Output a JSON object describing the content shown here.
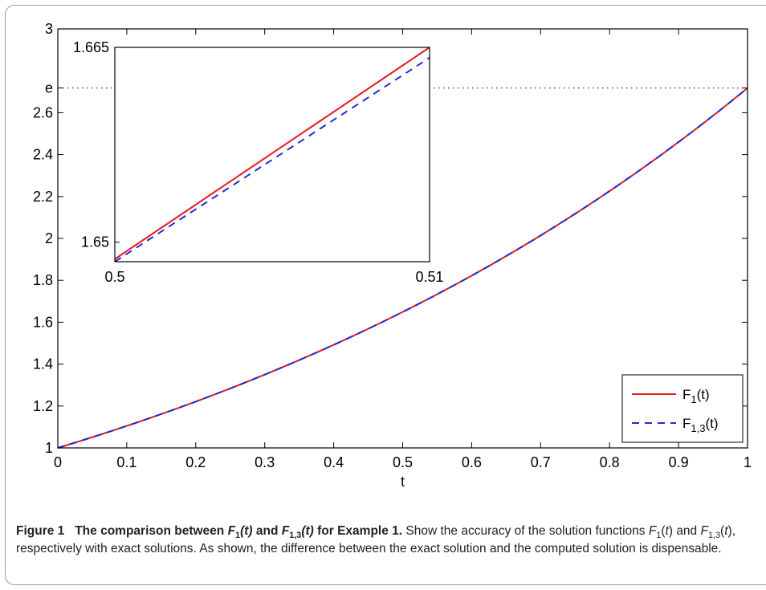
{
  "chart_data": [
    {
      "type": "line",
      "name": "main",
      "title": "",
      "xlabel": "t",
      "ylabel": "",
      "xlim": [
        0,
        1
      ],
      "ylim": [
        1,
        3
      ],
      "xticks": [
        0,
        0.1,
        0.2,
        0.3,
        0.4,
        0.5,
        0.6,
        0.7,
        0.8,
        0.9,
        1
      ],
      "xtick_labels": [
        "0",
        "0.1",
        "0.2",
        "0.3",
        "0.4",
        "0.5",
        "0.6",
        "0.7",
        "0.8",
        "0.9",
        "1"
      ],
      "yticks": [
        1,
        1.2,
        1.4,
        1.6,
        1.8,
        2,
        2.2,
        2.4,
        2.6,
        2.718,
        3
      ],
      "ytick_labels": [
        "1",
        "1.2",
        "1.4",
        "1.6",
        "1.8",
        "2",
        "2.2",
        "2.4",
        "2.6",
        "e",
        "3"
      ],
      "reference_line": {
        "y": 2.718,
        "label": "e",
        "style": "dotted"
      },
      "x": [
        0,
        0.1,
        0.2,
        0.3,
        0.4,
        0.5,
        0.6,
        0.7,
        0.8,
        0.9,
        1
      ],
      "series": [
        {
          "name": "F1(t)",
          "label_main": "F",
          "label_sub": "1",
          "label_tail": "(t)",
          "color": "#e8191a",
          "dash": "solid",
          "values": [
            1,
            1.105,
            1.221,
            1.35,
            1.492,
            1.649,
            1.822,
            2.014,
            2.226,
            2.46,
            2.718
          ]
        },
        {
          "name": "F1,3(t)",
          "label_main": "F",
          "label_sub": "1,3",
          "label_tail": "(t)",
          "color": "#1f2bd6",
          "dash": "dashed",
          "values": [
            1,
            1.105,
            1.221,
            1.35,
            1.492,
            1.649,
            1.822,
            2.014,
            2.226,
            2.46,
            2.718
          ]
        }
      ],
      "legend": "bottom-right",
      "grid": false
    },
    {
      "type": "line",
      "name": "inset",
      "title": "",
      "xlim": [
        0.5,
        0.51
      ],
      "ylim": [
        1.6485,
        1.665
      ],
      "xticks": [
        0.5,
        0.51
      ],
      "xtick_labels": [
        "0.5",
        "0.51"
      ],
      "yticks": [
        1.65,
        1.665
      ],
      "ytick_labels": [
        "1.65",
        "1.665"
      ],
      "x": [
        0.5,
        0.51
      ],
      "series": [
        {
          "name": "F1(t)",
          "color": "#e8191a",
          "dash": "solid",
          "values": [
            1.6487,
            1.665
          ]
        },
        {
          "name": "F1,3(t)",
          "color": "#1f2bd6",
          "dash": "dashed",
          "values": [
            1.6485,
            1.6642
          ]
        }
      ],
      "grid": false
    }
  ],
  "caption": {
    "prefix": "Figure 1",
    "title_a": "The comparison between",
    "f1_main": "F",
    "f1_sub": "1",
    "f1_arg": "(t)",
    "and": "and",
    "f13_main": "F",
    "f13_sub": "1,3",
    "f13_arg": "(t)",
    "title_b": "for Example 1.",
    "body_a": "Show the accuracy of the solution functions",
    "b_f1_main": "F",
    "b_f1_sub": "1",
    "b_f1_open": "(",
    "b_f1_t": "t",
    "b_f1_close": ")",
    "body_and": "and",
    "b_f13_main": "F",
    "b_f13_sub": "1,3",
    "b_f13_open": "(",
    "b_f13_t": "t",
    "b_f13_close": ")",
    "body_b": ", respectively with exact solutions. As shown, the difference between the exact solution and the computed solution is dispensable."
  }
}
